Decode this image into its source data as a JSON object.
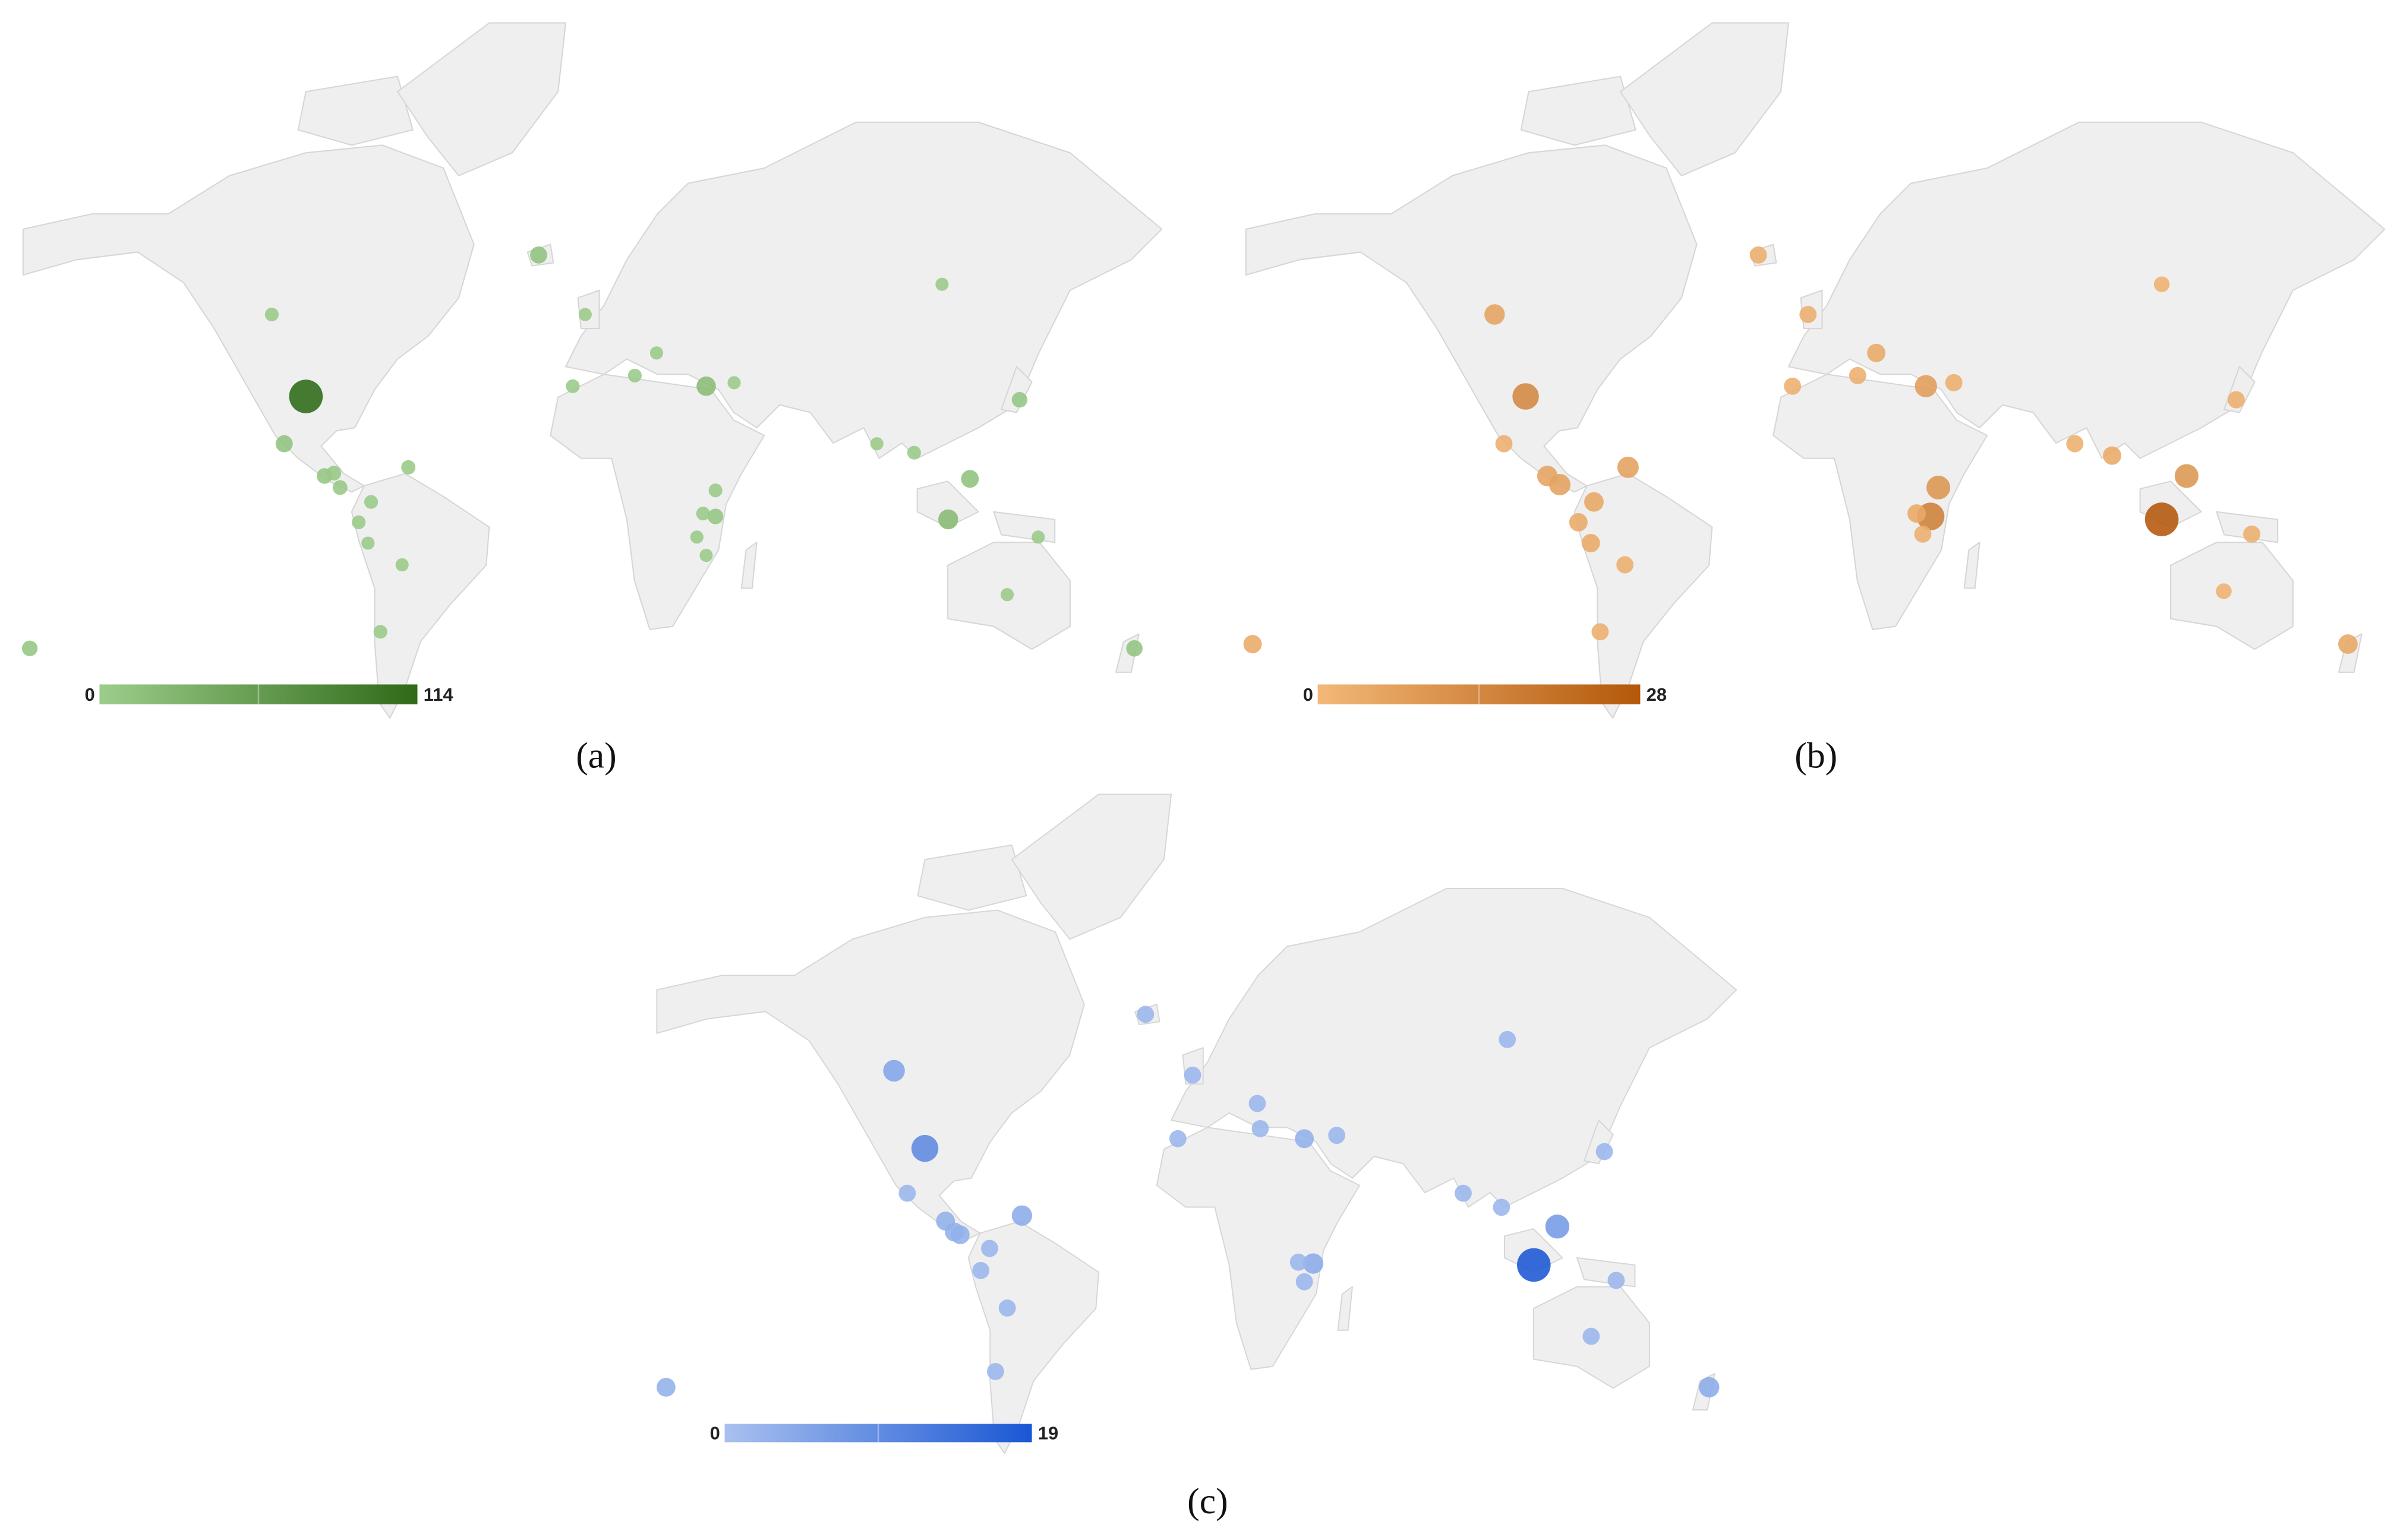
{
  "panels": [
    {
      "label": "(a)",
      "scale": {
        "min": 0,
        "max": 114
      },
      "color_low": "#9dcd8b",
      "color_high": "#2e6a17",
      "points": [
        {
          "lon": -98,
          "lat": 31,
          "value": 114
        },
        {
          "lon": -109,
          "lat": 52,
          "value": 4
        },
        {
          "lon": -105,
          "lat": 16,
          "value": 12
        },
        {
          "lon": -65,
          "lat": 8,
          "value": 5
        },
        {
          "lon": -92,
          "lat": 5,
          "value": 8
        },
        {
          "lon": -89,
          "lat": 6,
          "value": 6
        },
        {
          "lon": -87,
          "lat": 1,
          "value": 6
        },
        {
          "lon": -77,
          "lat": -4,
          "value": 4
        },
        {
          "lon": -81,
          "lat": -11,
          "value": 4
        },
        {
          "lon": -78,
          "lat": -18,
          "value": 3
        },
        {
          "lon": -67,
          "lat": -25,
          "value": 3
        },
        {
          "lon": -74,
          "lat": -44,
          "value": 4
        },
        {
          "lon": -187,
          "lat": -48,
          "value": 8
        },
        {
          "lon": -23,
          "lat": 63,
          "value": 12
        },
        {
          "lon": -8,
          "lat": 52,
          "value": 3
        },
        {
          "lon": -12,
          "lat": 34,
          "value": 4
        },
        {
          "lon": 8,
          "lat": 37,
          "value": 4
        },
        {
          "lon": 15,
          "lat": 43,
          "value": 3
        },
        {
          "lon": 31,
          "lat": 34,
          "value": 20
        },
        {
          "lon": 40,
          "lat": 35,
          "value": 3
        },
        {
          "lon": 107,
          "lat": 58,
          "value": 3
        },
        {
          "lon": 132,
          "lat": 30,
          "value": 8
        },
        {
          "lon": 86,
          "lat": 16,
          "value": 3
        },
        {
          "lon": 98,
          "lat": 13,
          "value": 4
        },
        {
          "lon": 116,
          "lat": 4,
          "value": 14
        },
        {
          "lon": 109,
          "lat": -10,
          "value": 22
        },
        {
          "lon": 34,
          "lat": -9,
          "value": 8
        },
        {
          "lon": 30,
          "lat": -8,
          "value": 4
        },
        {
          "lon": 34,
          "lat": 0,
          "value": 4
        },
        {
          "lon": 28,
          "lat": -16,
          "value": 3
        },
        {
          "lon": 31,
          "lat": -22,
          "value": 3
        },
        {
          "lon": 138,
          "lat": -16,
          "value": 3
        },
        {
          "lon": 128,
          "lat": -34,
          "value": 3
        },
        {
          "lon": 169,
          "lat": -48,
          "value": 10
        }
      ]
    },
    {
      "label": "(b)",
      "scale": {
        "min": 0,
        "max": 28
      },
      "color_low": "#f3b878",
      "color_high": "#b3580a",
      "points": [
        {
          "lon": -99,
          "lat": 31,
          "value": 14
        },
        {
          "lon": -109,
          "lat": 52,
          "value": 6
        },
        {
          "lon": -106,
          "lat": 16,
          "value": 3
        },
        {
          "lon": -66,
          "lat": 8,
          "value": 7
        },
        {
          "lon": -92,
          "lat": 5,
          "value": 6
        },
        {
          "lon": -88,
          "lat": 2,
          "value": 7
        },
        {
          "lon": -77,
          "lat": -4,
          "value": 5
        },
        {
          "lon": -82,
          "lat": -11,
          "value": 4
        },
        {
          "lon": -78,
          "lat": -18,
          "value": 4
        },
        {
          "lon": -67,
          "lat": -25,
          "value": 3
        },
        {
          "lon": -75,
          "lat": -44,
          "value": 3
        },
        {
          "lon": -187,
          "lat": -47,
          "value": 4
        },
        {
          "lon": -24,
          "lat": 63,
          "value": 3
        },
        {
          "lon": -8,
          "lat": 52,
          "value": 3
        },
        {
          "lon": 14,
          "lat": 43,
          "value": 4
        },
        {
          "lon": 8,
          "lat": 37,
          "value": 3
        },
        {
          "lon": -13,
          "lat": 34,
          "value": 3
        },
        {
          "lon": 30,
          "lat": 34,
          "value": 8
        },
        {
          "lon": 39,
          "lat": 35,
          "value": 3
        },
        {
          "lon": 106,
          "lat": 58,
          "value": 2
        },
        {
          "lon": 130,
          "lat": 30,
          "value": 3
        },
        {
          "lon": 78,
          "lat": 16,
          "value": 3
        },
        {
          "lon": 90,
          "lat": 12,
          "value": 4
        },
        {
          "lon": 114,
          "lat": 5,
          "value": 10
        },
        {
          "lon": 106,
          "lat": -10,
          "value": 28
        },
        {
          "lon": 34,
          "lat": 1,
          "value": 10
        },
        {
          "lon": 31.5,
          "lat": -9,
          "value": 16
        },
        {
          "lon": 27,
          "lat": -8,
          "value": 4
        },
        {
          "lon": 29,
          "lat": -15,
          "value": 3
        },
        {
          "lon": 135,
          "lat": -15,
          "value": 3
        },
        {
          "lon": 126,
          "lat": -33,
          "value": 2
        },
        {
          "lon": 166,
          "lat": -47,
          "value": 5
        }
      ]
    },
    {
      "label": "(c)",
      "scale": {
        "min": 0,
        "max": 19
      },
      "color_low": "#a9c1ef",
      "color_high": "#1a57d4",
      "points": [
        {
          "lon": -98,
          "lat": 31,
          "value": 10
        },
        {
          "lon": -108.5,
          "lat": 52,
          "value": 5
        },
        {
          "lon": -104,
          "lat": 16,
          "value": 2
        },
        {
          "lon": -65,
          "lat": 8,
          "value": 4
        },
        {
          "lon": -91,
          "lat": 6,
          "value": 3
        },
        {
          "lon": -88,
          "lat": 2,
          "value": 3
        },
        {
          "lon": -86,
          "lat": 1,
          "value": 3
        },
        {
          "lon": -76,
          "lat": -4,
          "value": 2
        },
        {
          "lon": -79,
          "lat": -12,
          "value": 2
        },
        {
          "lon": -70,
          "lat": -25,
          "value": 2
        },
        {
          "lon": -74,
          "lat": -44,
          "value": 2
        },
        {
          "lon": -186,
          "lat": -48,
          "value": 3
        },
        {
          "lon": -23,
          "lat": 63,
          "value": 2
        },
        {
          "lon": -7,
          "lat": 51,
          "value": 2
        },
        {
          "lon": 15,
          "lat": 44,
          "value": 2
        },
        {
          "lon": 16,
          "lat": 37,
          "value": 2
        },
        {
          "lon": -12,
          "lat": 34,
          "value": 2
        },
        {
          "lon": 31,
          "lat": 34,
          "value": 3
        },
        {
          "lon": 42,
          "lat": 35,
          "value": 2
        },
        {
          "lon": 100,
          "lat": 58.5,
          "value": 2
        },
        {
          "lon": 133,
          "lat": 30,
          "value": 2
        },
        {
          "lon": 85,
          "lat": 16,
          "value": 2
        },
        {
          "lon": 98,
          "lat": 11,
          "value": 2
        },
        {
          "lon": 117,
          "lat": 4,
          "value": 7
        },
        {
          "lon": 109,
          "lat": -10,
          "value": 19
        },
        {
          "lon": 34,
          "lat": -9.5,
          "value": 4
        },
        {
          "lon": 29,
          "lat": -9,
          "value": 2
        },
        {
          "lon": 31,
          "lat": -16,
          "value": 2
        },
        {
          "lon": 137,
          "lat": -15.5,
          "value": 2
        },
        {
          "lon": 128.5,
          "lat": -34,
          "value": 2
        },
        {
          "lon": 168.6,
          "lat": -48,
          "value": 4
        }
      ]
    }
  ]
}
